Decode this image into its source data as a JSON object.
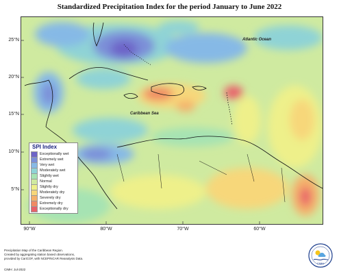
{
  "title": "Standardized Precipitation Index for the period January to June 2022",
  "axes": {
    "latitudes": [
      {
        "label": "25°N",
        "value": 25
      },
      {
        "label": "20°N",
        "value": 20
      },
      {
        "label": "15°N",
        "value": 15
      },
      {
        "label": "10°N",
        "value": 10
      },
      {
        "label": "5°N",
        "value": 5
      }
    ],
    "longitudes": [
      {
        "label": "90°W",
        "value": -90
      },
      {
        "label": "80°W",
        "value": -80
      },
      {
        "label": "70°W",
        "value": -70
      },
      {
        "label": "60°W",
        "value": -60
      }
    ]
  },
  "sea_labels": {
    "atlantic": "Atlantic Ocean",
    "caribbean": "Caribbean Sea"
  },
  "legend": {
    "title": "SPI Index",
    "items": [
      {
        "label": "Exceptionally wet",
        "color": "#6d64c8"
      },
      {
        "label": "Extremely wet",
        "color": "#7b8fd8"
      },
      {
        "label": "Very wet",
        "color": "#86b9e6"
      },
      {
        "label": "Moderately wet",
        "color": "#8fd3d6"
      },
      {
        "label": "Slightly wet",
        "color": "#a6e3b3"
      },
      {
        "label": "Normal",
        "color": "#cfeaa0"
      },
      {
        "label": "Slightly dry",
        "color": "#eef08a"
      },
      {
        "label": "Moderately dry",
        "color": "#f7d77a"
      },
      {
        "label": "Severely dry",
        "color": "#f5b06a"
      },
      {
        "label": "Extremely dry",
        "color": "#f08a63"
      },
      {
        "label": "Exceptionally dry",
        "color": "#e8616a"
      }
    ]
  },
  "footnote": {
    "lines": [
      "Precipitation Map of the Caribbean Region.",
      "Created by aggregating station based observations,",
      "provided by CariCOF, with NCEP/NCAR Reanalysis Data."
    ],
    "credit": "CIMH: Jul-2022"
  },
  "logo": {
    "text": "CIMH"
  }
}
